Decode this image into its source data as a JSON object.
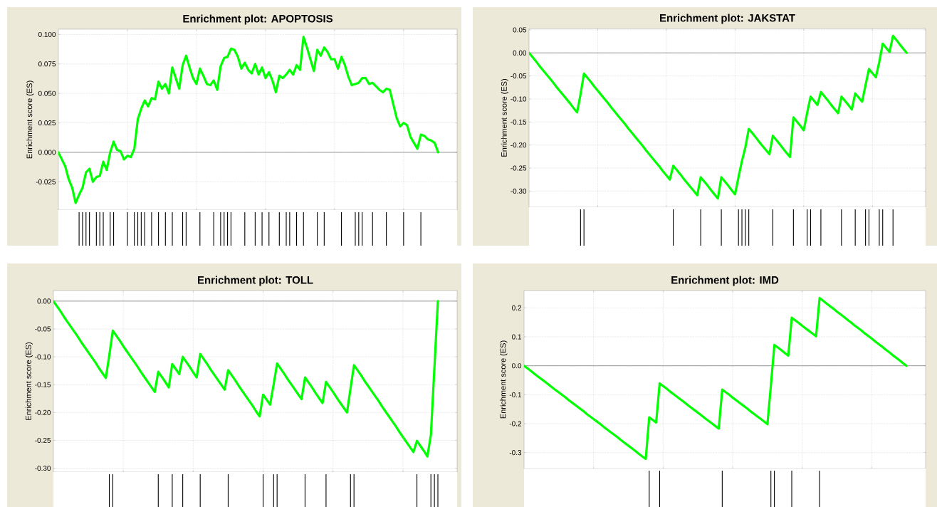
{
  "chart_data": [
    {
      "type": "line",
      "title": "Enrichment plot: APOPTOSIS",
      "ylabel": "Enrichment score (ES)",
      "color": "#00ff00",
      "grid": true,
      "categories": [
        null,
        null,
        null,
        null,
        null,
        null,
        null,
        null,
        null,
        null,
        null,
        null,
        null,
        null,
        null,
        null,
        null,
        null,
        null,
        null,
        null,
        null,
        null,
        null,
        null,
        null,
        null,
        null,
        null,
        null,
        null,
        null,
        null,
        null,
        null,
        null,
        null,
        null,
        null,
        null,
        null,
        null,
        null,
        null,
        null,
        null,
        null,
        null,
        null,
        null,
        null,
        null,
        null,
        null,
        null,
        null,
        null,
        null,
        null,
        null,
        null,
        null,
        null,
        null,
        null,
        null,
        null,
        null,
        null,
        null,
        null,
        null,
        null,
        null,
        null,
        null,
        null,
        null,
        null,
        null,
        null,
        null,
        null,
        null,
        null,
        null,
        null,
        null,
        null,
        null,
        null,
        null,
        null,
        null,
        null,
        null,
        null,
        null,
        null,
        null,
        null,
        null,
        null,
        null,
        null,
        null,
        null,
        null,
        null,
        null,
        null
      ],
      "values": [
        0,
        -0.006,
        -0.012,
        -0.023,
        -0.03,
        -0.043,
        -0.036,
        -0.03,
        -0.017,
        -0.014,
        -0.025,
        -0.021,
        -0.02,
        -0.008,
        -0.015,
        0,
        0.009,
        0.002,
        0.001,
        -0.006,
        -0.003,
        -0.004,
        0.003,
        0.028,
        0.037,
        0.044,
        0.039,
        0.046,
        0.045,
        0.06,
        0.054,
        0.058,
        0.05,
        0.072,
        0.063,
        0.054,
        0.074,
        0.082,
        0.072,
        0.063,
        0.058,
        0.071,
        0.065,
        0.058,
        0.057,
        0.061,
        0.053,
        0.073,
        0.08,
        0.081,
        0.088,
        0.087,
        0.081,
        0.071,
        0.076,
        0.07,
        0.067,
        0.075,
        0.066,
        0.072,
        0.063,
        0.068,
        0.061,
        0.051,
        0.065,
        0.063,
        0.066,
        0.07,
        0.066,
        0.074,
        0.07,
        0.098,
        0.089,
        0.079,
        0.069,
        0.087,
        0.082,
        0.089,
        0.085,
        0.079,
        0.079,
        0.071,
        0.081,
        0.074,
        0.064,
        0.057,
        0.058,
        0.059,
        0.063,
        0.063,
        0.058,
        0.059,
        0.056,
        0.053,
        0.051,
        0.054,
        0.053,
        0.041,
        0.029,
        0.022,
        0.025,
        0.023,
        0.013,
        0.008,
        0.003,
        0.015,
        0.014,
        0.011,
        0.01,
        0.008,
        0
      ],
      "ylim": [
        -0.049,
        0.1045
      ],
      "yticks": [
        {
          "value": -0.025,
          "label": "-0.025"
        },
        {
          "value": 0,
          "label": "0.000"
        },
        {
          "value": 0.025,
          "label": "0.025"
        },
        {
          "value": 0.05,
          "label": "0.050"
        },
        {
          "value": 0.075,
          "label": "0.075"
        },
        {
          "value": 0.1,
          "label": "0.100"
        }
      ],
      "ref_lines": [
        {
          "axis": "y",
          "value": 0,
          "color": "#808080"
        }
      ]
    },
    {
      "type": "line",
      "title": "Enrichment plot: JAKSTAT",
      "ylabel": "Enrichment score (ES)",
      "color": "#00ff00",
      "grid": true,
      "categories": [
        null,
        null,
        null,
        null,
        null,
        null,
        null,
        null,
        null,
        null,
        null,
        null,
        null,
        null,
        null,
        null,
        null,
        null,
        null,
        null,
        null,
        null,
        null,
        null,
        null,
        null,
        null,
        null,
        null,
        null,
        null,
        null,
        null,
        null,
        null,
        null,
        null,
        null,
        null,
        null,
        null,
        null,
        null,
        null,
        null,
        null,
        null,
        null,
        null,
        null,
        null,
        null,
        null,
        null,
        null,
        null,
        null,
        null,
        null,
        null,
        null,
        null,
        null,
        null,
        null,
        null,
        null,
        null,
        null,
        null,
        null,
        null,
        null,
        null,
        null,
        null,
        null,
        null,
        null,
        null,
        null,
        null,
        null,
        null,
        null,
        null,
        null,
        null,
        null,
        null,
        null,
        null,
        null,
        null,
        null,
        null,
        null,
        null,
        null,
        null,
        null,
        null,
        null,
        null,
        null,
        null,
        null,
        null,
        null,
        null,
        null
      ],
      "values": [
        0,
        -0.009,
        -0.018,
        -0.028,
        -0.037,
        -0.046,
        -0.055,
        -0.064,
        -0.074,
        -0.083,
        -0.092,
        -0.101,
        -0.11,
        -0.12,
        -0.129,
        -0.09,
        -0.045,
        -0.054,
        -0.063,
        -0.073,
        -0.082,
        -0.091,
        -0.1,
        -0.109,
        -0.119,
        -0.128,
        -0.137,
        -0.146,
        -0.155,
        -0.165,
        -0.174,
        -0.183,
        -0.192,
        -0.201,
        -0.211,
        -0.22,
        -0.229,
        -0.238,
        -0.247,
        -0.257,
        -0.266,
        -0.275,
        -0.245,
        -0.254,
        -0.263,
        -0.273,
        -0.282,
        -0.291,
        -0.3,
        -0.309,
        -0.27,
        -0.279,
        -0.288,
        -0.298,
        -0.307,
        -0.316,
        -0.27,
        -0.279,
        -0.288,
        -0.298,
        -0.307,
        -0.27,
        -0.235,
        -0.205,
        -0.165,
        -0.174,
        -0.183,
        -0.193,
        -0.202,
        -0.211,
        -0.22,
        -0.18,
        -0.189,
        -0.198,
        -0.208,
        -0.217,
        -0.226,
        -0.14,
        -0.149,
        -0.158,
        -0.168,
        -0.13,
        -0.095,
        -0.104,
        -0.113,
        -0.085,
        -0.094,
        -0.103,
        -0.113,
        -0.122,
        -0.131,
        -0.095,
        -0.104,
        -0.113,
        -0.123,
        -0.088,
        -0.097,
        -0.106,
        -0.07,
        -0.035,
        -0.044,
        -0.053,
        -0.02,
        0.02,
        0.011,
        0.002,
        0.037,
        0.028,
        0.018,
        0.009,
        0
      ],
      "ylim": [
        -0.335,
        0.053
      ],
      "yticks": [
        {
          "value": -0.3,
          "label": "-0.30"
        },
        {
          "value": -0.25,
          "label": "-0.25"
        },
        {
          "value": -0.2,
          "label": "-0.20"
        },
        {
          "value": -0.15,
          "label": "-0.15"
        },
        {
          "value": -0.1,
          "label": "-0.10"
        },
        {
          "value": -0.05,
          "label": "-0.05"
        },
        {
          "value": 0,
          "label": "0.00"
        },
        {
          "value": 0.05,
          "label": "0.05"
        }
      ],
      "ref_lines": [
        {
          "axis": "y",
          "value": 0,
          "color": "#808080"
        }
      ]
    },
    {
      "type": "line",
      "title": "Enrichment plot: TOLL",
      "ylabel": "Enrichment score (ES)",
      "color": "#00ff00",
      "grid": true,
      "categories": [
        null,
        null,
        null,
        null,
        null,
        null,
        null,
        null,
        null,
        null,
        null,
        null,
        null,
        null,
        null,
        null,
        null,
        null,
        null,
        null,
        null,
        null,
        null,
        null,
        null,
        null,
        null,
        null,
        null,
        null,
        null,
        null,
        null,
        null,
        null,
        null,
        null,
        null,
        null,
        null,
        null,
        null,
        null,
        null,
        null,
        null,
        null,
        null,
        null,
        null,
        null,
        null,
        null,
        null,
        null,
        null,
        null,
        null,
        null,
        null,
        null,
        null,
        null,
        null,
        null,
        null,
        null,
        null,
        null,
        null,
        null,
        null,
        null,
        null,
        null,
        null,
        null,
        null,
        null,
        null,
        null,
        null,
        null,
        null,
        null,
        null,
        null,
        null,
        null,
        null,
        null,
        null,
        null,
        null,
        null,
        null,
        null,
        null,
        null,
        null,
        null,
        null,
        null,
        null,
        null,
        null,
        null,
        null,
        null,
        null,
        null
      ],
      "values": [
        0,
        -0.009,
        -0.018,
        -0.028,
        -0.037,
        -0.046,
        -0.055,
        -0.064,
        -0.074,
        -0.083,
        -0.092,
        -0.101,
        -0.11,
        -0.12,
        -0.129,
        -0.138,
        -0.097,
        -0.053,
        -0.062,
        -0.071,
        -0.081,
        -0.09,
        -0.099,
        -0.108,
        -0.117,
        -0.127,
        -0.136,
        -0.145,
        -0.154,
        -0.163,
        -0.127,
        -0.136,
        -0.145,
        -0.155,
        -0.113,
        -0.122,
        -0.131,
        -0.1,
        -0.109,
        -0.118,
        -0.128,
        -0.137,
        -0.095,
        -0.104,
        -0.113,
        -0.123,
        -0.132,
        -0.141,
        -0.15,
        -0.159,
        -0.124,
        -0.133,
        -0.142,
        -0.152,
        -0.161,
        -0.17,
        -0.179,
        -0.188,
        -0.198,
        -0.207,
        -0.168,
        -0.177,
        -0.186,
        -0.15,
        -0.112,
        -0.121,
        -0.13,
        -0.14,
        -0.149,
        -0.158,
        -0.167,
        -0.176,
        -0.137,
        -0.146,
        -0.155,
        -0.165,
        -0.174,
        -0.183,
        -0.145,
        -0.154,
        -0.163,
        -0.173,
        -0.182,
        -0.191,
        -0.2,
        -0.157,
        -0.115,
        -0.124,
        -0.133,
        -0.143,
        -0.152,
        -0.161,
        -0.17,
        -0.179,
        -0.189,
        -0.198,
        -0.207,
        -0.216,
        -0.225,
        -0.235,
        -0.244,
        -0.253,
        -0.262,
        -0.271,
        -0.251,
        -0.26,
        -0.269,
        -0.279,
        -0.24,
        -0.12,
        0
      ],
      "ylim": [
        -0.307,
        0.019
      ],
      "yticks": [
        {
          "value": -0.3,
          "label": "-0.30"
        },
        {
          "value": -0.25,
          "label": "-0.25"
        },
        {
          "value": -0.2,
          "label": "-0.20"
        },
        {
          "value": -0.15,
          "label": "-0.15"
        },
        {
          "value": -0.1,
          "label": "-0.10"
        },
        {
          "value": -0.05,
          "label": "-0.05"
        },
        {
          "value": 0,
          "label": "0.00"
        }
      ],
      "ref_lines": [
        {
          "axis": "y",
          "value": 0,
          "color": "#808080"
        }
      ]
    },
    {
      "type": "line",
      "title": "Enrichment plot: IMD",
      "ylabel": "Enrichment score (ES)",
      "color": "#00ff00",
      "grid": true,
      "categories": [
        null,
        null,
        null,
        null,
        null,
        null,
        null,
        null,
        null,
        null,
        null,
        null,
        null,
        null,
        null,
        null,
        null,
        null,
        null,
        null,
        null,
        null,
        null,
        null,
        null,
        null,
        null,
        null,
        null,
        null,
        null,
        null,
        null,
        null,
        null,
        null,
        null,
        null,
        null,
        null,
        null,
        null,
        null,
        null,
        null,
        null,
        null,
        null,
        null,
        null,
        null,
        null,
        null,
        null,
        null,
        null,
        null,
        null,
        null,
        null,
        null,
        null,
        null,
        null,
        null,
        null,
        null,
        null,
        null,
        null,
        null,
        null,
        null,
        null,
        null,
        null,
        null,
        null,
        null,
        null,
        null,
        null,
        null,
        null,
        null,
        null,
        null,
        null,
        null,
        null,
        null,
        null,
        null,
        null,
        null,
        null,
        null,
        null,
        null,
        null,
        null,
        null,
        null,
        null,
        null,
        null,
        null,
        null,
        null,
        null,
        null
      ],
      "values": [
        0,
        -0.009,
        -0.018,
        -0.028,
        -0.037,
        -0.046,
        -0.055,
        -0.064,
        -0.074,
        -0.083,
        -0.092,
        -0.101,
        -0.11,
        -0.12,
        -0.129,
        -0.138,
        -0.147,
        -0.156,
        -0.166,
        -0.175,
        -0.184,
        -0.193,
        -0.202,
        -0.212,
        -0.221,
        -0.23,
        -0.239,
        -0.248,
        -0.258,
        -0.267,
        -0.276,
        -0.285,
        -0.294,
        -0.304,
        -0.313,
        -0.322,
        -0.178,
        -0.187,
        -0.196,
        -0.061,
        -0.07,
        -0.079,
        -0.089,
        -0.098,
        -0.107,
        -0.116,
        -0.125,
        -0.135,
        -0.144,
        -0.153,
        -0.162,
        -0.171,
        -0.181,
        -0.19,
        -0.199,
        -0.208,
        -0.217,
        -0.082,
        -0.091,
        -0.1,
        -0.11,
        -0.119,
        -0.128,
        -0.137,
        -0.146,
        -0.156,
        -0.165,
        -0.174,
        -0.183,
        -0.192,
        -0.202,
        -0.067,
        0.072,
        0.063,
        0.054,
        0.044,
        0.035,
        0.166,
        0.157,
        0.148,
        0.138,
        0.129,
        0.12,
        0.111,
        0.102,
        0.234,
        0.225,
        0.215,
        0.206,
        0.197,
        0.187,
        0.178,
        0.169,
        0.159,
        0.15,
        0.14,
        0.131,
        0.122,
        0.112,
        0.103,
        0.094,
        0.084,
        0.075,
        0.066,
        0.056,
        0.047,
        0.037,
        0.028,
        0.019,
        0.009,
        0
      ],
      "ylim": [
        -0.355,
        0.26
      ],
      "yticks": [
        {
          "value": -0.3,
          "label": "-0.3"
        },
        {
          "value": -0.2,
          "label": "-0.2"
        },
        {
          "value": -0.1,
          "label": "-0.1"
        },
        {
          "value": 0,
          "label": "0.0"
        },
        {
          "value": 0.1,
          "label": "0.1"
        },
        {
          "value": 0.2,
          "label": "0.2"
        }
      ],
      "ref_lines": [
        {
          "axis": "y",
          "value": 0,
          "color": "#808080"
        }
      ]
    }
  ]
}
